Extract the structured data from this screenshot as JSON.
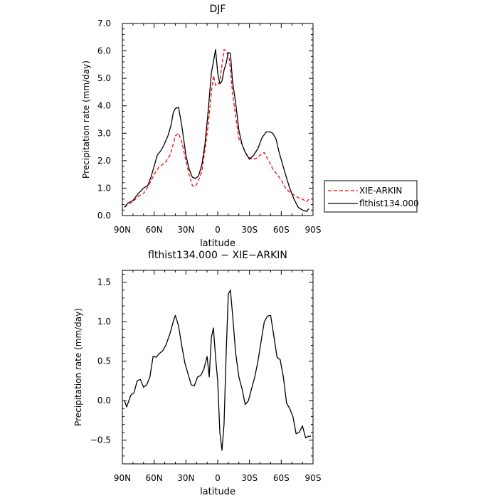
{
  "chart_data": [
    {
      "type": "line",
      "title": "DJF",
      "xlabel": "latitude",
      "ylabel": "Precipitation rate (mm/day)",
      "xlim": [
        90,
        -90
      ],
      "ylim": [
        0,
        7
      ],
      "x_ticks": [
        90,
        60,
        30,
        0,
        -30,
        -60,
        -90
      ],
      "x_tick_labels": [
        "90N",
        "60N",
        "30N",
        "0",
        "30S",
        "60S",
        "90S"
      ],
      "y_ticks": [
        0,
        1,
        2,
        3,
        4,
        5,
        6,
        7
      ],
      "y_tick_labels": [
        "0.0",
        "1.0",
        "2.0",
        "3.0",
        "4.0",
        "5.0",
        "6.0",
        "7.0"
      ],
      "grid": false,
      "legend_position": "right",
      "series": [
        {
          "name": "XIE-ARKIN",
          "color": "#ff0000",
          "style": "dashed",
          "x": [
            88,
            85,
            80,
            75,
            70,
            65,
            60,
            55,
            50,
            45,
            42,
            40,
            37,
            34,
            30,
            27,
            24,
            21,
            18,
            15,
            12,
            9,
            6,
            4,
            2,
            0,
            -2,
            -4,
            -6,
            -8,
            -11,
            -14,
            -17,
            -20,
            -23,
            -26,
            -30,
            -34,
            -37,
            -40,
            -44,
            -48,
            -52,
            -56,
            -60,
            -64,
            -68,
            -72,
            -76,
            -80,
            -84,
            -86
          ],
          "y": [
            0.3,
            0.4,
            0.5,
            0.7,
            0.8,
            1.1,
            1.5,
            1.8,
            1.9,
            2.2,
            2.6,
            2.9,
            3.0,
            2.7,
            2.0,
            1.5,
            1.1,
            1.05,
            1.3,
            1.6,
            2.4,
            3.3,
            4.5,
            5.1,
            4.75,
            4.75,
            4.9,
            5.5,
            6.05,
            6.0,
            5.7,
            4.5,
            3.6,
            2.8,
            2.6,
            2.3,
            2.1,
            2.05,
            2.1,
            2.2,
            2.3,
            2.0,
            1.7,
            1.5,
            1.3,
            1.0,
            0.85,
            0.75,
            0.65,
            0.6,
            0.5,
            0.6
          ]
        },
        {
          "name": "flthist134.000",
          "color": "#000000",
          "style": "solid",
          "x": [
            88,
            85,
            80,
            75,
            70,
            66,
            63,
            60,
            57,
            54,
            51,
            47,
            44,
            42,
            40,
            37,
            34,
            30,
            27,
            24,
            21,
            18,
            15,
            12,
            9,
            6,
            4,
            2,
            0,
            -2,
            -4,
            -6,
            -8,
            -10,
            -12,
            -14,
            -17,
            -20,
            -23,
            -26,
            -30,
            -34,
            -38,
            -42,
            -46,
            -49,
            -52,
            -55,
            -58,
            -61,
            -64,
            -68,
            -72,
            -76,
            -80,
            -84,
            -86
          ],
          "y": [
            0.3,
            0.45,
            0.55,
            0.8,
            1.0,
            1.1,
            1.4,
            1.8,
            2.2,
            2.35,
            2.55,
            2.9,
            3.3,
            3.75,
            3.9,
            3.95,
            3.3,
            2.2,
            1.7,
            1.4,
            1.35,
            1.45,
            1.85,
            2.6,
            3.8,
            5.2,
            5.6,
            6.05,
            5.2,
            4.8,
            4.9,
            5.3,
            5.55,
            5.95,
            5.9,
            4.9,
            4.1,
            3.1,
            2.6,
            2.3,
            2.05,
            2.2,
            2.45,
            2.85,
            3.05,
            3.05,
            3.0,
            2.8,
            2.3,
            1.9,
            1.5,
            1.0,
            0.6,
            0.3,
            0.2,
            0.15,
            0.25
          ]
        }
      ]
    },
    {
      "type": "line",
      "title": "flthist134.000 − XIE−ARKIN",
      "xlabel": "latitude",
      "ylabel": "Precipitation rate (mm/day)",
      "xlim": [
        90,
        -90
      ],
      "ylim": [
        -0.8,
        1.65
      ],
      "x_ticks": [
        90,
        60,
        30,
        0,
        -30,
        -60,
        -90
      ],
      "x_tick_labels": [
        "90N",
        "60N",
        "30N",
        "0",
        "30S",
        "60S",
        "90S"
      ],
      "y_ticks": [
        -0.5,
        0,
        0.5,
        1.0,
        1.5
      ],
      "y_tick_labels": [
        "−0.5",
        "0.0",
        "0.5",
        "1.0",
        "1.5"
      ],
      "grid": false,
      "series": [
        {
          "color": "#000000",
          "style": "solid",
          "x": [
            88,
            86,
            82,
            79,
            76,
            73,
            70,
            67,
            64,
            61,
            58,
            55,
            52,
            49,
            45,
            42,
            40,
            37,
            34,
            31,
            28,
            25,
            22,
            19,
            16,
            13,
            10,
            8,
            6,
            4,
            2,
            0,
            -2,
            -4,
            -6,
            -8,
            -10,
            -12,
            -14,
            -17,
            -20,
            -23,
            -26,
            -29,
            -32,
            -35,
            -38,
            -41,
            -44,
            -47,
            -50,
            -53,
            -56,
            -59,
            -62,
            -65,
            -68,
            -71,
            -74,
            -77,
            -80,
            -83,
            -86,
            -88
          ],
          "y": [
            0.0,
            -0.08,
            0.07,
            0.1,
            0.25,
            0.27,
            0.17,
            0.2,
            0.3,
            0.56,
            0.55,
            0.6,
            0.63,
            0.7,
            0.85,
            1.0,
            1.08,
            0.95,
            0.7,
            0.48,
            0.34,
            0.2,
            0.19,
            0.3,
            0.32,
            0.4,
            0.56,
            0.3,
            0.8,
            0.92,
            0.55,
            0.25,
            -0.4,
            -0.63,
            -0.3,
            0.6,
            1.35,
            1.4,
            1.1,
            0.6,
            0.3,
            0.15,
            -0.05,
            0.0,
            0.15,
            0.3,
            0.5,
            0.75,
            1.0,
            1.07,
            1.08,
            0.82,
            0.55,
            0.52,
            0.3,
            -0.03,
            -0.1,
            -0.2,
            -0.42,
            -0.4,
            -0.32,
            -0.47,
            -0.45,
            -0.45
          ]
        }
      ]
    }
  ]
}
